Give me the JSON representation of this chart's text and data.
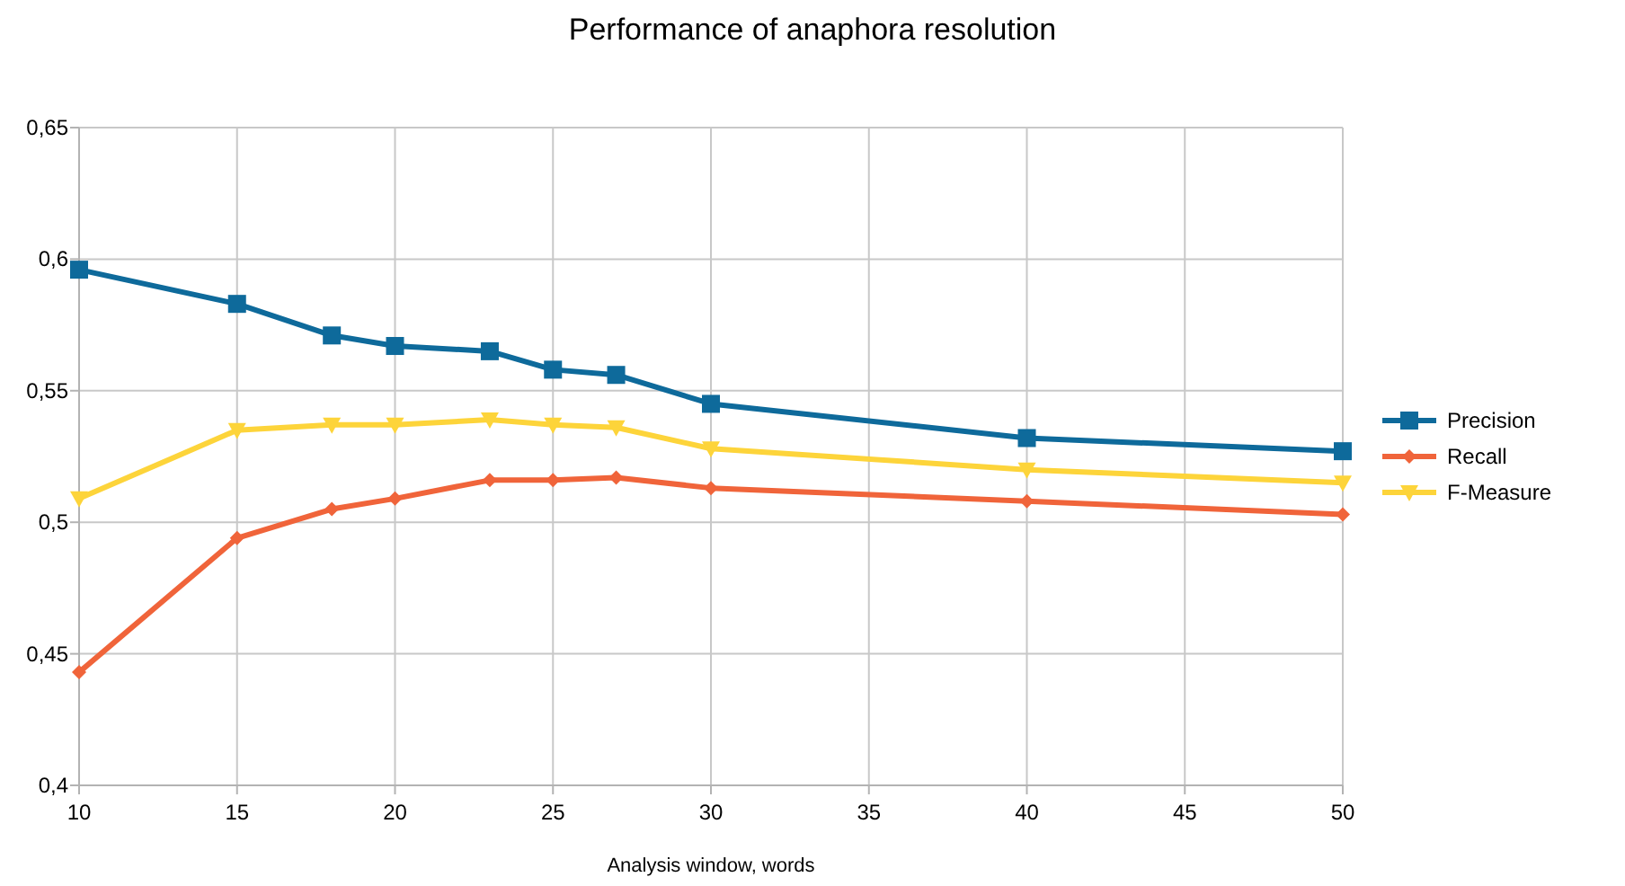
{
  "chart_data": {
    "type": "line",
    "title": "Performance of anaphora resolution",
    "xlabel": "Analysis window, words",
    "x": [
      10,
      15,
      18,
      20,
      23,
      25,
      27,
      30,
      40,
      50
    ],
    "series": [
      {
        "name": "Precision",
        "color": "#0e6a9b",
        "marker": "square",
        "values": [
          0.596,
          0.583,
          0.571,
          0.567,
          0.565,
          0.558,
          0.556,
          0.545,
          0.532,
          0.527
        ]
      },
      {
        "name": "Recall",
        "color": "#f0643a",
        "marker": "diamond",
        "values": [
          0.443,
          0.494,
          0.505,
          0.509,
          0.516,
          0.516,
          0.517,
          0.513,
          0.508,
          0.503
        ]
      },
      {
        "name": "F-Measure",
        "color": "#fdd43a",
        "marker": "triangle",
        "values": [
          0.509,
          0.535,
          0.537,
          0.537,
          0.539,
          0.537,
          0.536,
          0.528,
          0.52,
          0.515
        ]
      }
    ],
    "xlim": [
      10,
      50
    ],
    "xticks": [
      10,
      15,
      20,
      25,
      30,
      35,
      40,
      45,
      50
    ],
    "ylim": [
      0.4,
      0.65
    ],
    "yticks": [
      {
        "value": 0.4,
        "label": "0,4"
      },
      {
        "value": 0.45,
        "label": "0,45"
      },
      {
        "value": 0.5,
        "label": "0,5"
      },
      {
        "value": 0.55,
        "label": "0,55"
      },
      {
        "value": 0.6,
        "label": "0,6"
      },
      {
        "value": 0.65,
        "label": "0,65"
      }
    ],
    "grid": true,
    "legend": "right",
    "line_style": "solid"
  }
}
